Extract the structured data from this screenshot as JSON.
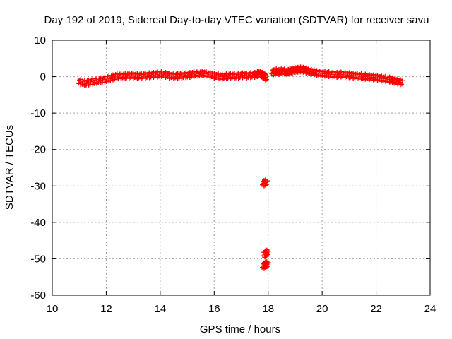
{
  "chart_data": {
    "type": "scatter",
    "title": "Day 192 of 2019, Sidereal Day-to-day VTEC variation (SDTVAR) for receiver savu",
    "xlabel": "GPS time / hours",
    "ylabel": "SDTVAR / TECUs",
    "xlim": [
      10,
      24
    ],
    "ylim": [
      -60,
      10
    ],
    "xticks": [
      10,
      12,
      14,
      16,
      18,
      20,
      22,
      24
    ],
    "yticks": [
      10,
      0,
      -10,
      -20,
      -30,
      -40,
      -50,
      -60
    ],
    "xtick_labels": [
      "10",
      "12",
      "14",
      "16",
      "18",
      "20",
      "22",
      "24"
    ],
    "ytick_labels": [
      "10",
      "0",
      "-10",
      "-20",
      "-30",
      "-40",
      "-50",
      "-60"
    ],
    "grid": true,
    "legend": "none",
    "marker": "cross",
    "series_color": "#ff0000",
    "series": [
      {
        "name": "SDTVAR",
        "x": [
          11.05,
          11.2,
          11.35,
          11.5,
          11.65,
          11.8,
          11.95,
          12.1,
          12.25,
          12.4,
          12.55,
          12.7,
          12.85,
          13.0,
          13.15,
          13.3,
          13.45,
          13.6,
          13.75,
          13.9,
          14.05,
          14.2,
          14.35,
          14.5,
          14.65,
          14.8,
          14.95,
          15.1,
          15.25,
          15.4,
          15.55,
          15.7,
          15.85,
          16.0,
          16.15,
          16.3,
          16.45,
          16.6,
          16.75,
          16.9,
          17.05,
          17.2,
          17.35,
          17.5,
          17.6,
          17.7,
          17.8,
          17.85,
          17.9,
          18.2,
          18.3,
          18.4,
          18.5,
          18.6,
          18.7,
          18.8,
          18.9,
          19.0,
          19.1,
          19.2,
          19.3,
          19.4,
          19.5,
          19.6,
          19.7,
          19.8,
          19.95,
          20.1,
          20.25,
          20.4,
          20.55,
          20.7,
          20.85,
          21.0,
          21.15,
          21.3,
          21.45,
          21.6,
          21.75,
          21.9,
          22.05,
          22.2,
          22.35,
          22.5,
          22.6,
          22.7,
          22.8,
          22.9,
          17.85,
          17.9,
          17.95,
          17.88,
          17.95,
          17.85,
          17.9
        ],
        "y": [
          -1.5,
          -1.8,
          -1.6,
          -1.4,
          -1.2,
          -1.0,
          -0.8,
          -0.5,
          -0.2,
          0.1,
          0.2,
          0.2,
          0.3,
          0.3,
          0.2,
          0.2,
          0.3,
          0.4,
          0.5,
          0.6,
          0.7,
          0.5,
          0.3,
          0.2,
          0.2,
          0.3,
          0.4,
          0.5,
          0.7,
          0.8,
          0.9,
          0.8,
          0.5,
          0.3,
          0.1,
          0.0,
          0.1,
          0.2,
          0.2,
          0.3,
          0.4,
          0.3,
          0.4,
          0.5,
          0.7,
          0.9,
          0.4,
          0.2,
          -0.2,
          1.2,
          1.5,
          1.3,
          1.6,
          1.4,
          1.2,
          1.5,
          1.7,
          1.8,
          1.9,
          2.0,
          1.9,
          1.7,
          1.5,
          1.3,
          1.2,
          1.0,
          0.9,
          0.8,
          0.7,
          0.6,
          0.5,
          0.6,
          0.5,
          0.4,
          0.3,
          0.2,
          0.1,
          0.0,
          -0.1,
          -0.2,
          -0.3,
          -0.5,
          -0.6,
          -0.8,
          -1.0,
          -1.2,
          -1.3,
          -1.5,
          -29.3,
          -29.0,
          -48.3,
          -48.8,
          -51.5,
          -52.0,
          -51.6
        ]
      }
    ]
  }
}
